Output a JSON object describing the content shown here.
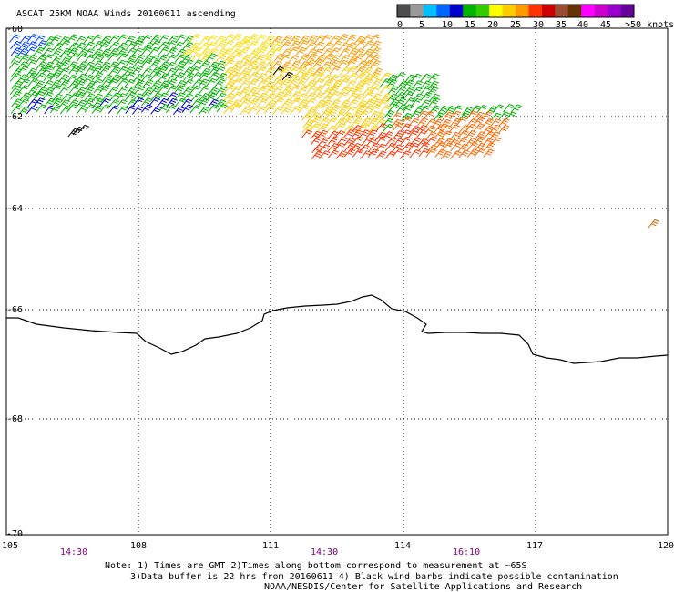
{
  "title": "ASCAT 25KM NOAA Winds 20160611 ascending",
  "colorbar": {
    "colors": [
      "#4d4d4d",
      "#999999",
      "#00bfff",
      "#0066ff",
      "#0000cc",
      "#00b300",
      "#33cc00",
      "#ffff00",
      "#ffcc00",
      "#ff9900",
      "#ff3300",
      "#cc0000",
      "#994d33",
      "#663300",
      "#ff00ff",
      "#cc00cc",
      "#9900cc",
      "#660099"
    ],
    "labels": [
      "0",
      "5",
      "10",
      "15",
      "20",
      "25",
      "30",
      "35",
      "40",
      "45",
      ">50 knots"
    ]
  },
  "axes": {
    "lon_ticks": [
      "105",
      "108",
      "111",
      "114",
      "117",
      "120"
    ],
    "lat_ticks": [
      "-60",
      "-62",
      "-64",
      "-66",
      "-68",
      "-70"
    ]
  },
  "times": [
    "14:30",
    "14:30",
    "16:10"
  ],
  "notes": {
    "line1": "Note: 1) Times are GMT 2)Times along bottom correspond to measurement at ~65S",
    "line2": "3)Data buffer is 22 hrs from 20160611 4) Black wind barbs indicate possible contamination",
    "line3": "NOAA/NESDIS/Center for Satellite Applications and Research"
  },
  "coastline_color": "#000000"
}
